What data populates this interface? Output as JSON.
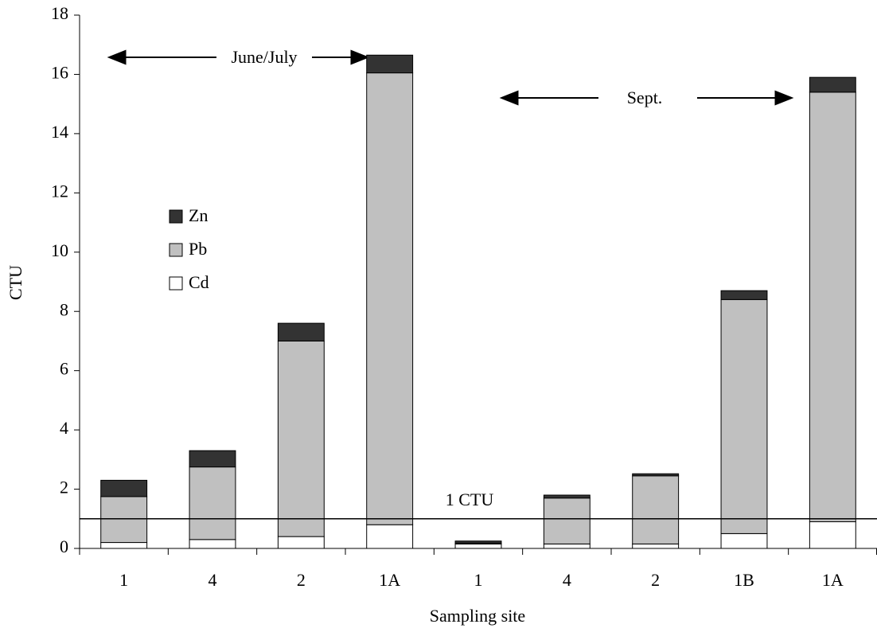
{
  "chart_data": {
    "type": "stacked_bar",
    "x_label": "Sampling site",
    "y_label": "CTU",
    "categories": [
      "1",
      "4",
      "2",
      "1A",
      "1",
      "4",
      "2",
      "1B",
      "1A"
    ],
    "series": [
      {
        "name": "Cd",
        "color": "#ffffff",
        "values": [
          0.2,
          0.3,
          0.4,
          0.8,
          0.15,
          0.15,
          0.15,
          0.5,
          0.9
        ]
      },
      {
        "name": "Pb",
        "color": "#c0c0c0",
        "values": [
          1.55,
          2.45,
          6.6,
          15.25,
          0.03,
          1.55,
          2.3,
          7.9,
          14.5
        ]
      },
      {
        "name": "Zn",
        "color": "#333333",
        "values": [
          0.55,
          0.55,
          0.6,
          0.6,
          0.07,
          0.1,
          0.07,
          0.3,
          0.5
        ]
      }
    ],
    "ylim": [
      0,
      18
    ],
    "yticks": [
      0,
      2,
      4,
      6,
      8,
      10,
      12,
      14,
      16,
      18
    ],
    "reference_line": {
      "value": 1,
      "label": "1 CTU"
    },
    "annotations": [
      "June/July",
      "Sept."
    ]
  }
}
